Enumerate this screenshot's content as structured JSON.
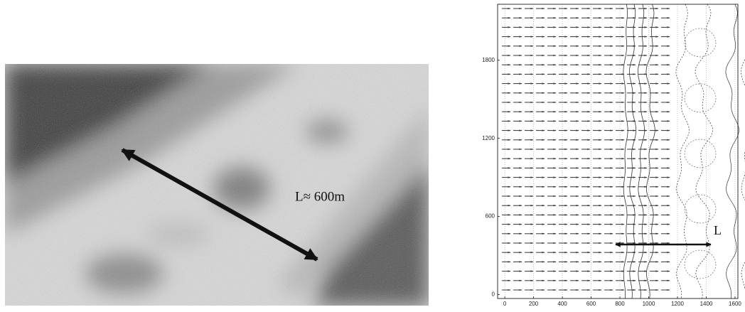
{
  "photo": {
    "label": "L≈ 600m"
  },
  "plot": {
    "xlim": [
      -50,
      1620
    ],
    "ylim": [
      -30,
      2230
    ],
    "xticks": [
      0,
      200,
      400,
      600,
      800,
      1000,
      1200,
      1400,
      1600
    ],
    "yticks": [
      0,
      600,
      1200,
      1800
    ],
    "label": "L"
  }
}
